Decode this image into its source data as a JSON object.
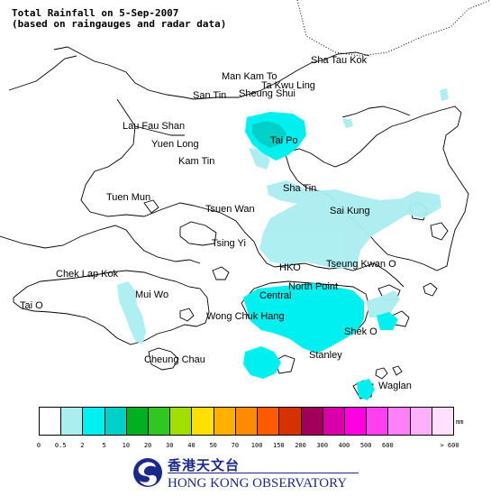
{
  "header": {
    "title": "Total Rainfall on 5-Sep-2007",
    "subtitle": "(based on raingauges and radar data)"
  },
  "places": [
    {
      "key": "sha-tau-kok",
      "name": "Sha Tau Kok"
    },
    {
      "key": "man-kam-to",
      "name": "Man Kam To"
    },
    {
      "key": "ta-kwu-ling",
      "name": "Ta Kwu Ling"
    },
    {
      "key": "san-tin",
      "name": "San Tin"
    },
    {
      "key": "sheung-shui",
      "name": "Sheung Shui"
    },
    {
      "key": "lau-fau-shan",
      "name": "Lau Fau Shan"
    },
    {
      "key": "tai-po",
      "name": "Tai Po"
    },
    {
      "key": "yuen-long",
      "name": "Yuen Long"
    },
    {
      "key": "kam-tin",
      "name": "Kam Tin"
    },
    {
      "key": "sha-tin",
      "name": "Sha Tin"
    },
    {
      "key": "tuen-mun",
      "name": "Tuen Mun"
    },
    {
      "key": "tsuen-wan",
      "name": "Tsuen Wan"
    },
    {
      "key": "sai-kung",
      "name": "Sai Kung"
    },
    {
      "key": "tsing-yi",
      "name": "Tsing Yi"
    },
    {
      "key": "hko",
      "name": "HKO"
    },
    {
      "key": "tseung-kwan-o",
      "name": "Tseung Kwan O"
    },
    {
      "key": "chek-lap-kok",
      "name": "Chek Lap Kok"
    },
    {
      "key": "north-point",
      "name": "North Point"
    },
    {
      "key": "mui-wo",
      "name": "Mui Wo"
    },
    {
      "key": "central",
      "name": "Central"
    },
    {
      "key": "tai-o",
      "name": "Tai O"
    },
    {
      "key": "wong-chuk-hang",
      "name": "Wong Chuk Hang"
    },
    {
      "key": "shek-o",
      "name": "Shek O"
    },
    {
      "key": "stanley",
      "name": "Stanley"
    },
    {
      "key": "cheung-chau",
      "name": "Cheung Chau"
    },
    {
      "key": "waglan",
      "name": "Waglan"
    }
  ],
  "legend": {
    "unit": "mm",
    "colors": [
      "#ffffff",
      "#aaeef0",
      "#00f0f0",
      "#00d0c8",
      "#00b020",
      "#30c820",
      "#a0e000",
      "#ffe000",
      "#ffb000",
      "#ff8c00",
      "#ff5a00",
      "#d43200",
      "#a0005a",
      "#d800a8",
      "#ff00e0",
      "#ff40f0",
      "#ff80f8",
      "#ffb0fa",
      "#ffe0fc"
    ],
    "ticks": [
      "0",
      "0.5",
      "2",
      "5",
      "10",
      "20",
      "30",
      "40",
      "50",
      "70",
      "100",
      "150",
      "200",
      "300",
      "400",
      "500",
      "600",
      "> 600"
    ]
  },
  "org": {
    "name_cn": "香港天文台",
    "name_en": "HONG KONG OBSERVATORY"
  }
}
